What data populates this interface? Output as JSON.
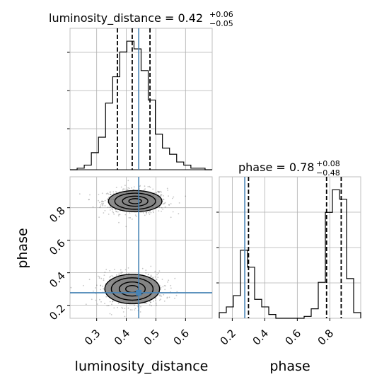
{
  "chart_data": [
    {
      "type": "histogram",
      "panel": "luminosity_distance-marginal",
      "title": {
        "main": "luminosity_distance = 0.42",
        "sup": "+0.06",
        "sub": "−0.05"
      },
      "xlim": [
        0.21,
        0.69
      ],
      "bin_edges": [
        0.21,
        0.234,
        0.258,
        0.282,
        0.306,
        0.33,
        0.354,
        0.378,
        0.402,
        0.426,
        0.45,
        0.474,
        0.498,
        0.522,
        0.546,
        0.57,
        0.594,
        0.618,
        0.642,
        0.666,
        0.69
      ],
      "counts": [
        0,
        1,
        3,
        11,
        21,
        43,
        60,
        76,
        83,
        78,
        64,
        45,
        23,
        14,
        10,
        5,
        3,
        1,
        1,
        0
      ],
      "quantiles": [
        0.37,
        0.42,
        0.48
      ],
      "truth": 0.442,
      "grid": true,
      "color": "#000000",
      "truth_color": "#4682b4"
    },
    {
      "type": "scatter+contour",
      "panel": "luminosity_distance-vs-phase",
      "x_label": "luminosity_distance",
      "y_label": "phase",
      "xlim": [
        0.21,
        0.69
      ],
      "ylim": [
        0.12,
        0.99
      ],
      "xticks": [
        0.3,
        0.4,
        0.5,
        0.6
      ],
      "xtick_labels": [
        "0.3",
        "0.4",
        "0.5",
        "0.6"
      ],
      "yticks": [
        0.2,
        0.4,
        0.6,
        0.8
      ],
      "ytick_labels": [
        "0.2",
        "0.4",
        "0.6",
        "0.8"
      ],
      "modes": [
        {
          "cx": 0.43,
          "cy": 0.84,
          "sx": 0.043,
          "sy": 0.031,
          "n": 700
        },
        {
          "cx": 0.42,
          "cy": 0.3,
          "sx": 0.044,
          "sy": 0.043,
          "n": 550
        }
      ],
      "contour_levels": [
        0.5,
        1.0,
        1.6,
        2.1
      ],
      "truth": {
        "x": 0.442,
        "y": 0.277
      },
      "grid": true,
      "color": "#000000",
      "truth_color": "#4682b4"
    },
    {
      "type": "histogram",
      "panel": "phase-marginal",
      "title": {
        "main": "phase = 0.78",
        "sup": "+0.08",
        "sub": "−0.48"
      },
      "x_label": "phase",
      "xlim": [
        0.12,
        0.99
      ],
      "xticks": [
        0.2,
        0.4,
        0.6,
        0.8
      ],
      "xtick_labels": [
        "0.2",
        "0.4",
        "0.6",
        "0.8"
      ],
      "bin_edges": [
        0.12,
        0.1635,
        0.207,
        0.2505,
        0.294,
        0.3375,
        0.381,
        0.4245,
        0.468,
        0.5115,
        0.555,
        0.5985,
        0.642,
        0.6855,
        0.729,
        0.7725,
        0.816,
        0.8595,
        0.903,
        0.9465,
        0.99
      ],
      "counts": [
        3,
        6,
        12,
        36,
        27,
        10,
        6,
        2,
        0,
        0,
        0,
        0,
        1,
        5,
        19,
        56,
        68,
        63,
        21,
        3
      ],
      "quantiles": [
        0.3,
        0.78,
        0.87
      ],
      "truth": 0.277,
      "grid": true,
      "color": "#000000",
      "truth_color": "#4682b4"
    }
  ]
}
